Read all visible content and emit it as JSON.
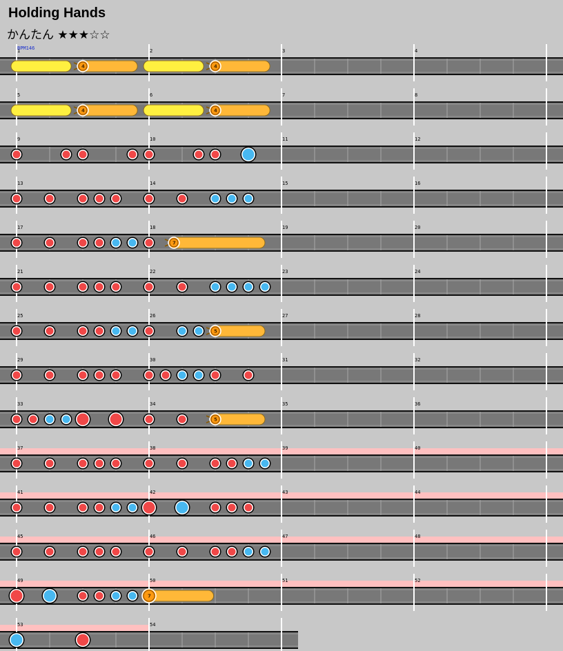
{
  "song": {
    "title": "Holding Hands",
    "difficulty_label": "かんたん",
    "stars": "★★★☆☆",
    "bpm_label": "BPM146"
  },
  "colors": {
    "background": "#c8c8c8",
    "lane": "#787878",
    "gogo_band": "#ffc0c0",
    "don": "#f04848",
    "ka": "#48b8f0",
    "drumroll": "#ffb838",
    "balloon": "#ffb838",
    "big_drumroll_yellow": "#fff040"
  },
  "chart_data": {
    "type": "taiko_chart",
    "measures_per_row": 4,
    "beats_per_measure": 4,
    "rows": [
      {
        "measures": [
          1,
          2,
          3,
          4
        ],
        "gogo": false,
        "notes": [],
        "rolls": [
          {
            "kind": "drumroll",
            "start": 0,
            "end": 1.65
          },
          {
            "kind": "balloon",
            "count": "4",
            "start": 2,
            "end": 3.65
          },
          {
            "kind": "drumroll",
            "start": 4,
            "end": 5.65
          },
          {
            "kind": "balloon",
            "count": "4",
            "start": 6,
            "end": 7.65
          }
        ]
      },
      {
        "measures": [
          5,
          6,
          7,
          8
        ],
        "gogo": false,
        "notes": [],
        "rolls": [
          {
            "kind": "drumroll",
            "start": 0,
            "end": 1.65
          },
          {
            "kind": "balloon",
            "count": "4",
            "start": 2,
            "end": 3.65
          },
          {
            "kind": "drumroll",
            "start": 4,
            "end": 5.65
          },
          {
            "kind": "balloon",
            "count": "4",
            "start": 6,
            "end": 7.65
          }
        ]
      },
      {
        "measures": [
          9,
          10,
          11,
          12
        ],
        "gogo": false,
        "rolls": [],
        "notes": [
          {
            "type": "don",
            "pos": 0
          },
          {
            "type": "don",
            "pos": 1.5
          },
          {
            "type": "don",
            "pos": 2
          },
          {
            "type": "don",
            "pos": 3.5
          },
          {
            "type": "don",
            "pos": 4
          },
          {
            "type": "don",
            "pos": 5.5
          },
          {
            "type": "don",
            "pos": 6
          },
          {
            "type": "KA",
            "pos": 7
          }
        ]
      },
      {
        "measures": [
          13,
          14,
          15,
          16
        ],
        "gogo": false,
        "rolls": [],
        "notes": [
          {
            "type": "don",
            "pos": 0
          },
          {
            "type": "don",
            "pos": 1
          },
          {
            "type": "don",
            "pos": 2
          },
          {
            "type": "don",
            "pos": 2.5
          },
          {
            "type": "don",
            "pos": 3
          },
          {
            "type": "don",
            "pos": 4
          },
          {
            "type": "don",
            "pos": 5
          },
          {
            "type": "ka",
            "pos": 6
          },
          {
            "type": "ka",
            "pos": 6.5
          },
          {
            "type": "ka",
            "pos": 7
          }
        ]
      },
      {
        "measures": [
          17,
          18,
          19,
          20
        ],
        "gogo": false,
        "notes": [
          {
            "type": "don",
            "pos": 0
          },
          {
            "type": "don",
            "pos": 1
          },
          {
            "type": "don",
            "pos": 2
          },
          {
            "type": "don",
            "pos": 2.5
          },
          {
            "type": "ka",
            "pos": 3
          },
          {
            "type": "ka",
            "pos": 3.5
          },
          {
            "type": "don",
            "pos": 4
          }
        ],
        "rolls": [
          {
            "kind": "balloon",
            "count": "7",
            "start": 4.75,
            "end": 7.5
          }
        ]
      },
      {
        "measures": [
          21,
          22,
          23,
          24
        ],
        "gogo": false,
        "rolls": [],
        "notes": [
          {
            "type": "don",
            "pos": 0
          },
          {
            "type": "don",
            "pos": 1
          },
          {
            "type": "don",
            "pos": 2
          },
          {
            "type": "don",
            "pos": 2.5
          },
          {
            "type": "don",
            "pos": 3
          },
          {
            "type": "don",
            "pos": 4
          },
          {
            "type": "don",
            "pos": 5
          },
          {
            "type": "ka",
            "pos": 6
          },
          {
            "type": "ka",
            "pos": 6.5
          },
          {
            "type": "ka",
            "pos": 7
          },
          {
            "type": "ka",
            "pos": 7.5
          }
        ]
      },
      {
        "measures": [
          25,
          26,
          27,
          28
        ],
        "gogo": false,
        "notes": [
          {
            "type": "don",
            "pos": 0
          },
          {
            "type": "don",
            "pos": 1
          },
          {
            "type": "don",
            "pos": 2
          },
          {
            "type": "don",
            "pos": 2.5
          },
          {
            "type": "ka",
            "pos": 3
          },
          {
            "type": "ka",
            "pos": 3.5
          },
          {
            "type": "don",
            "pos": 4
          },
          {
            "type": "ka",
            "pos": 5
          },
          {
            "type": "ka",
            "pos": 5.5
          }
        ],
        "rolls": [
          {
            "kind": "balloon",
            "count": "5",
            "start": 6,
            "end": 7.5
          }
        ]
      },
      {
        "measures": [
          29,
          30,
          31,
          32
        ],
        "gogo": false,
        "rolls": [],
        "notes": [
          {
            "type": "don",
            "pos": 0
          },
          {
            "type": "don",
            "pos": 1
          },
          {
            "type": "don",
            "pos": 2
          },
          {
            "type": "don",
            "pos": 2.5
          },
          {
            "type": "don",
            "pos": 3
          },
          {
            "type": "don",
            "pos": 4
          },
          {
            "type": "don",
            "pos": 4.5
          },
          {
            "type": "ka",
            "pos": 5
          },
          {
            "type": "ka",
            "pos": 5.5
          },
          {
            "type": "don",
            "pos": 6
          },
          {
            "type": "don",
            "pos": 7
          }
        ]
      },
      {
        "measures": [
          33,
          34,
          35,
          36
        ],
        "gogo": false,
        "notes": [
          {
            "type": "don",
            "pos": 0
          },
          {
            "type": "don",
            "pos": 0.5
          },
          {
            "type": "ka",
            "pos": 1
          },
          {
            "type": "ka",
            "pos": 1.5
          },
          {
            "type": "DON",
            "pos": 2
          },
          {
            "type": "DON",
            "pos": 3
          },
          {
            "type": "don",
            "pos": 4
          },
          {
            "type": "don",
            "pos": 5
          }
        ],
        "rolls": [
          {
            "kind": "balloon",
            "count": "5",
            "start": 6,
            "end": 7.5
          }
        ]
      },
      {
        "measures": [
          37,
          38,
          39,
          40
        ],
        "gogo": true,
        "rolls": [],
        "notes": [
          {
            "type": "don",
            "pos": 0
          },
          {
            "type": "don",
            "pos": 1
          },
          {
            "type": "don",
            "pos": 2
          },
          {
            "type": "don",
            "pos": 2.5
          },
          {
            "type": "don",
            "pos": 3
          },
          {
            "type": "don",
            "pos": 4
          },
          {
            "type": "don",
            "pos": 5
          },
          {
            "type": "don",
            "pos": 6
          },
          {
            "type": "don",
            "pos": 6.5
          },
          {
            "type": "ka",
            "pos": 7
          },
          {
            "type": "ka",
            "pos": 7.5
          }
        ]
      },
      {
        "measures": [
          41,
          42,
          43,
          44
        ],
        "gogo": true,
        "rolls": [],
        "notes": [
          {
            "type": "don",
            "pos": 0
          },
          {
            "type": "don",
            "pos": 1
          },
          {
            "type": "don",
            "pos": 2
          },
          {
            "type": "don",
            "pos": 2.5
          },
          {
            "type": "ka",
            "pos": 3
          },
          {
            "type": "ka",
            "pos": 3.5
          },
          {
            "type": "DON",
            "pos": 4
          },
          {
            "type": "KA",
            "pos": 5
          },
          {
            "type": "don",
            "pos": 6
          },
          {
            "type": "don",
            "pos": 6.5
          },
          {
            "type": "don",
            "pos": 7
          }
        ]
      },
      {
        "measures": [
          45,
          46,
          47,
          48
        ],
        "gogo": true,
        "rolls": [],
        "notes": [
          {
            "type": "don",
            "pos": 0
          },
          {
            "type": "don",
            "pos": 1
          },
          {
            "type": "don",
            "pos": 2
          },
          {
            "type": "don",
            "pos": 2.5
          },
          {
            "type": "don",
            "pos": 3
          },
          {
            "type": "don",
            "pos": 4
          },
          {
            "type": "don",
            "pos": 5
          },
          {
            "type": "don",
            "pos": 6
          },
          {
            "type": "don",
            "pos": 6.5
          },
          {
            "type": "ka",
            "pos": 7
          },
          {
            "type": "ka",
            "pos": 7.5
          }
        ]
      },
      {
        "measures": [
          49,
          50,
          51,
          52
        ],
        "gogo": true,
        "notes": [
          {
            "type": "DON",
            "pos": 0
          },
          {
            "type": "KA",
            "pos": 1
          },
          {
            "type": "don",
            "pos": 2
          },
          {
            "type": "don",
            "pos": 2.5
          },
          {
            "type": "ka",
            "pos": 3
          },
          {
            "type": "ka",
            "pos": 3.5
          }
        ],
        "rolls": [
          {
            "kind": "big_balloon",
            "count": "7",
            "start": 4,
            "end": 5.95
          }
        ]
      },
      {
        "measures": [
          53,
          54
        ],
        "gogo": true,
        "rolls": [],
        "notes": [
          {
            "type": "KA",
            "pos": 0
          },
          {
            "type": "DON",
            "pos": 2
          }
        ]
      }
    ]
  }
}
